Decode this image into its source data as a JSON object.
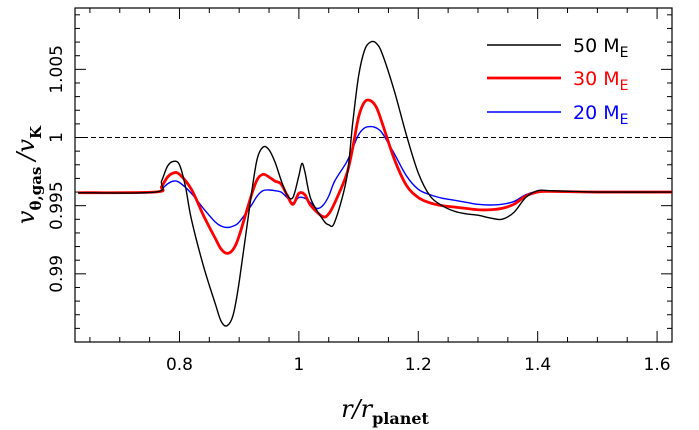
{
  "chart_data": {
    "type": "line",
    "xlabel": "r/r_planet",
    "xlabel_main": "r/r",
    "xlabel_sub": "planet",
    "ylabel": "v_θ,gas / v_K",
    "ylabel_main": "v",
    "ylabel_sub1": "θ,gas",
    "ylabel_mid": "/v",
    "ylabel_sub2": "K",
    "xlim": [
      0.625,
      1.625
    ],
    "ylim": [
      0.985,
      1.0095
    ],
    "xticks": [
      0.8,
      1,
      1.2,
      1.4,
      1.6
    ],
    "xtick_labels": [
      "0.8",
      "1",
      "1.2",
      "1.4",
      "1.6"
    ],
    "yticks": [
      0.99,
      0.995,
      1,
      1.005
    ],
    "ytick_labels": [
      "0.99",
      "0.995",
      "1",
      "1.005"
    ],
    "reference_line": {
      "y": 1.0,
      "style": "dashed"
    },
    "legend_position": "top-right",
    "series": [
      {
        "name": "50 M",
        "name_sub": "E",
        "color": "#000000",
        "x": [
          0.63,
          0.76,
          0.77,
          0.78,
          0.79,
          0.8,
          0.81,
          0.82,
          0.84,
          0.86,
          0.87,
          0.88,
          0.89,
          0.9,
          0.92,
          0.93,
          0.94,
          0.95,
          0.96,
          0.97,
          0.98,
          0.99,
          1.0,
          1.005,
          1.01,
          1.02,
          1.04,
          1.05,
          1.06,
          1.08,
          1.09,
          1.1,
          1.11,
          1.12,
          1.13,
          1.14,
          1.16,
          1.18,
          1.2,
          1.22,
          1.24,
          1.26,
          1.28,
          1.3,
          1.32,
          1.34,
          1.36,
          1.38,
          1.4,
          1.42,
          1.5,
          1.625
        ],
        "y": [
          0.99595,
          0.996,
          0.9968,
          0.9979,
          0.99825,
          0.998,
          0.9964,
          0.994,
          0.9906,
          0.9878,
          0.9865,
          0.9862,
          0.987,
          0.9894,
          0.9957,
          0.9984,
          0.9993,
          0.9991,
          0.9982,
          0.9969,
          0.9958,
          0.9956,
          0.9972,
          0.9981,
          0.9975,
          0.9955,
          0.994,
          0.9936,
          0.9938,
          0.997,
          1.001,
          1.0045,
          1.0064,
          1.007,
          1.0069,
          1.0061,
          1.0034,
          1.0002,
          0.9974,
          0.9957,
          0.995,
          0.9946,
          0.9944,
          0.9943,
          0.9941,
          0.994,
          0.9945,
          0.9956,
          0.9961,
          0.9961,
          0.996,
          0.996
        ]
      },
      {
        "name": "30 M",
        "name_sub": "E",
        "color": "#ff0000",
        "x": [
          0.63,
          0.76,
          0.77,
          0.78,
          0.79,
          0.8,
          0.82,
          0.84,
          0.86,
          0.87,
          0.88,
          0.89,
          0.9,
          0.92,
          0.93,
          0.94,
          0.95,
          0.96,
          0.97,
          0.98,
          0.99,
          1.0,
          1.01,
          1.02,
          1.04,
          1.05,
          1.06,
          1.08,
          1.09,
          1.1,
          1.11,
          1.12,
          1.13,
          1.14,
          1.16,
          1.18,
          1.2,
          1.22,
          1.24,
          1.26,
          1.28,
          1.3,
          1.32,
          1.34,
          1.36,
          1.38,
          1.4,
          1.42,
          1.5,
          1.625
        ],
        "y": [
          0.99595,
          0.996,
          0.9964,
          0.9971,
          0.9974,
          0.9973,
          0.9962,
          0.9943,
          0.9926,
          0.9918,
          0.9915,
          0.9918,
          0.9928,
          0.9957,
          0.9969,
          0.9973,
          0.9971,
          0.9968,
          0.9966,
          0.9958,
          0.9951,
          0.9959,
          0.9958,
          0.995,
          0.9942,
          0.9944,
          0.9952,
          0.9973,
          0.9992,
          1.0015,
          1.0026,
          1.0027,
          1.0022,
          1.001,
          0.9984,
          0.9965,
          0.9956,
          0.9952,
          0.995,
          0.9949,
          0.9948,
          0.9947,
          0.9947,
          0.9948,
          0.9951,
          0.9957,
          0.996,
          0.99605,
          0.996,
          0.996
        ]
      },
      {
        "name": "20 M",
        "name_sub": "E",
        "color": "#0000ff",
        "x": [
          0.63,
          0.76,
          0.77,
          0.78,
          0.79,
          0.8,
          0.82,
          0.84,
          0.86,
          0.87,
          0.88,
          0.89,
          0.9,
          0.92,
          0.93,
          0.94,
          0.95,
          0.96,
          0.97,
          0.98,
          0.99,
          1.0,
          1.01,
          1.02,
          1.03,
          1.04,
          1.05,
          1.06,
          1.08,
          1.09,
          1.1,
          1.11,
          1.12,
          1.13,
          1.14,
          1.16,
          1.18,
          1.2,
          1.22,
          1.24,
          1.26,
          1.28,
          1.3,
          1.32,
          1.34,
          1.36,
          1.38,
          1.4,
          1.42,
          1.5,
          1.625
        ],
        "y": [
          0.99595,
          0.996,
          0.9962,
          0.9966,
          0.9968,
          0.9967,
          0.9959,
          0.9948,
          0.9938,
          0.9935,
          0.9934,
          0.9935,
          0.9938,
          0.995,
          0.9957,
          0.9961,
          0.99615,
          0.9961,
          0.996,
          0.9956,
          0.9952,
          0.9956,
          0.99555,
          0.9952,
          0.9948,
          0.995,
          0.9957,
          0.9968,
          0.9982,
          0.9992,
          1.0002,
          1.0007,
          1.0008,
          1.0007,
          1.0003,
          0.9988,
          0.9972,
          0.9962,
          0.9958,
          0.99555,
          0.9954,
          0.99525,
          0.9951,
          0.99505,
          0.9951,
          0.9953,
          0.9958,
          0.99605,
          0.99605,
          0.996,
          0.996
        ]
      }
    ]
  }
}
